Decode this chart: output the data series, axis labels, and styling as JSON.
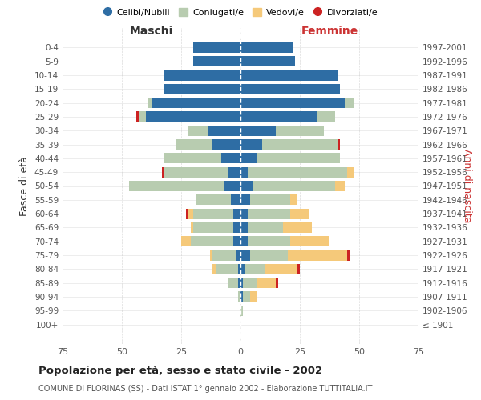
{
  "age_groups": [
    "100+",
    "95-99",
    "90-94",
    "85-89",
    "80-84",
    "75-79",
    "70-74",
    "65-69",
    "60-64",
    "55-59",
    "50-54",
    "45-49",
    "40-44",
    "35-39",
    "30-34",
    "25-29",
    "20-24",
    "15-19",
    "10-14",
    "5-9",
    "0-4"
  ],
  "birth_years": [
    "≤ 1901",
    "1902-1906",
    "1907-1911",
    "1912-1916",
    "1917-1921",
    "1922-1926",
    "1927-1931",
    "1932-1936",
    "1937-1941",
    "1942-1946",
    "1947-1951",
    "1952-1956",
    "1957-1961",
    "1962-1966",
    "1967-1971",
    "1972-1976",
    "1977-1981",
    "1982-1986",
    "1987-1991",
    "1992-1996",
    "1997-2001"
  ],
  "colors": {
    "single": "#2E6DA4",
    "married": "#B8CCB0",
    "widowed": "#F5C97A",
    "divorced": "#CC2222"
  },
  "males": {
    "single": [
      0,
      0,
      0,
      1,
      1,
      2,
      3,
      3,
      3,
      4,
      7,
      5,
      8,
      12,
      14,
      40,
      37,
      32,
      32,
      20,
      20
    ],
    "married": [
      0,
      0,
      1,
      4,
      9,
      10,
      18,
      17,
      17,
      15,
      40,
      27,
      24,
      15,
      8,
      3,
      2,
      0,
      0,
      0,
      0
    ],
    "widowed": [
      0,
      0,
      0,
      0,
      2,
      1,
      4,
      1,
      2,
      0,
      0,
      0,
      0,
      0,
      0,
      0,
      0,
      0,
      0,
      0,
      0
    ],
    "divorced": [
      0,
      0,
      0,
      0,
      0,
      0,
      0,
      0,
      1,
      0,
      0,
      1,
      0,
      0,
      0,
      1,
      0,
      0,
      0,
      0,
      0
    ]
  },
  "females": {
    "single": [
      0,
      0,
      1,
      1,
      2,
      4,
      3,
      3,
      3,
      4,
      5,
      3,
      7,
      9,
      15,
      32,
      44,
      42,
      41,
      23,
      22
    ],
    "married": [
      0,
      1,
      3,
      6,
      8,
      16,
      18,
      15,
      18,
      17,
      35,
      42,
      35,
      32,
      20,
      8,
      4,
      0,
      0,
      0,
      0
    ],
    "widowed": [
      0,
      0,
      3,
      8,
      14,
      25,
      16,
      12,
      8,
      3,
      4,
      3,
      0,
      0,
      0,
      0,
      0,
      0,
      0,
      0,
      0
    ],
    "divorced": [
      0,
      0,
      0,
      1,
      1,
      1,
      0,
      0,
      0,
      0,
      0,
      0,
      0,
      1,
      0,
      0,
      0,
      0,
      0,
      0,
      0
    ]
  },
  "title": "Popolazione per età, sesso e stato civile - 2002",
  "subtitle": "COMUNE DI FLORINAS (SS) - Dati ISTAT 1° gennaio 2002 - Elaborazione TUTTITALIA.IT",
  "ylabel_left": "Fasce di età",
  "ylabel_right": "Anni di nascita",
  "xlabel_left": "Maschi",
  "xlabel_right": "Femmine",
  "xlim": 75,
  "background_color": "#ffffff",
  "grid_color": "#cccccc"
}
